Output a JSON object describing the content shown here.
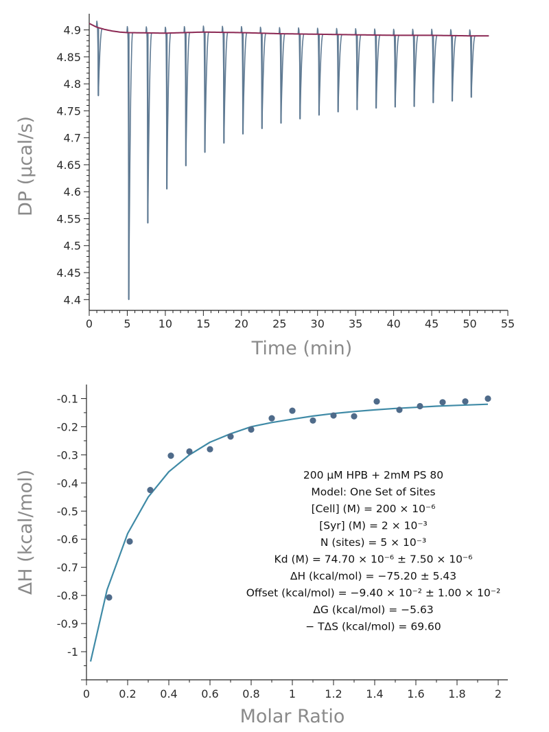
{
  "chart_data": [
    {
      "type": "line",
      "title": "",
      "xlabel": "Time (min)",
      "ylabel": "DP (µcal/s)",
      "xlim": [
        0,
        55
      ],
      "ylim": [
        4.38,
        4.93
      ],
      "xticks": [
        "0",
        "5",
        "10",
        "15",
        "20",
        "25",
        "30",
        "35",
        "40",
        "45",
        "50",
        "55"
      ],
      "yticks": [
        "4.4",
        "4.45",
        "4.5",
        "4.55",
        "4.6",
        "4.65",
        "4.7",
        "4.75",
        "4.8",
        "4.85",
        "4.9"
      ],
      "colors": {
        "trace": "#5f7a93",
        "baseline": "#8e2a55"
      },
      "series": [
        {
          "name": "Baseline",
          "x": [
            0,
            1,
            2,
            3,
            4,
            5,
            10,
            15,
            20,
            25,
            30,
            35,
            40,
            45,
            50,
            52.5
          ],
          "y": [
            4.912,
            4.905,
            4.901,
            4.898,
            4.896,
            4.895,
            4.894,
            4.896,
            4.895,
            4.893,
            4.892,
            4.891,
            4.89,
            4.89,
            4.889,
            4.889
          ]
        },
        {
          "name": "Injection peaks",
          "x": [
            1.2,
            5.2,
            7.7,
            10.2,
            12.7,
            15.2,
            17.7,
            20.2,
            22.7,
            25.2,
            27.7,
            30.2,
            32.7,
            35.2,
            37.7,
            40.2,
            42.7,
            45.2,
            47.7,
            50.2
          ],
          "y": [
            4.778,
            4.4,
            4.542,
            4.605,
            4.648,
            4.673,
            4.69,
            4.707,
            4.717,
            4.727,
            4.735,
            4.742,
            4.748,
            4.752,
            4.755,
            4.757,
            4.758,
            4.765,
            4.768,
            4.775
          ]
        }
      ]
    },
    {
      "type": "scatter",
      "title": "",
      "xlabel": "Molar Ratio",
      "ylabel": "ΔH (kcal/mol)",
      "xlim": [
        0,
        2
      ],
      "ylim": [
        -1.1,
        -0.05
      ],
      "xticks": [
        "0",
        "0.2",
        "0.4",
        "0.6",
        "0.8",
        "1",
        "1.2",
        "1.4",
        "1.6",
        "1.8",
        "2"
      ],
      "yticks": [
        "-1",
        "-0.9",
        "-0.8",
        "-0.7",
        "-0.6",
        "-0.5",
        "-0.4",
        "-0.3",
        "-0.2",
        "-0.1"
      ],
      "colors": {
        "points": "#4f6b8a",
        "fit": "#3f8aa6"
      },
      "series": [
        {
          "name": "Data",
          "x": [
            0.11,
            0.21,
            0.31,
            0.41,
            0.5,
            0.6,
            0.7,
            0.8,
            0.9,
            1.0,
            1.1,
            1.2,
            1.3,
            1.41,
            1.52,
            1.62,
            1.73,
            1.84,
            1.95
          ],
          "y": [
            -0.807,
            -0.608,
            -0.425,
            -0.303,
            -0.288,
            -0.28,
            -0.235,
            -0.21,
            -0.17,
            -0.143,
            -0.178,
            -0.16,
            -0.163,
            -0.11,
            -0.14,
            -0.127,
            -0.113,
            -0.11,
            -0.1
          ]
        },
        {
          "name": "Fit",
          "x": [
            0.02,
            0.1,
            0.2,
            0.3,
            0.4,
            0.5,
            0.6,
            0.7,
            0.8,
            0.9,
            1.0,
            1.1,
            1.2,
            1.3,
            1.4,
            1.5,
            1.6,
            1.7,
            1.8,
            1.95
          ],
          "y": [
            -1.035,
            -0.78,
            -0.58,
            -0.45,
            -0.36,
            -0.3,
            -0.255,
            -0.225,
            -0.2,
            -0.185,
            -0.173,
            -0.162,
            -0.153,
            -0.146,
            -0.14,
            -0.135,
            -0.131,
            -0.127,
            -0.124,
            -0.12
          ]
        }
      ],
      "annotations": [
        "200 µM HPB + 2mM PS 80",
        "Model: One Set of Sites",
        "[Cell] (M) = 200 × 10⁻⁶",
        "[Syr] (M) = 2 × 10⁻³",
        "N (sites) = 5 × 10⁻³",
        "Kd  (M) = 74.70 × 10⁻⁶ ± 7.50 × 10⁻⁶",
        "ΔH (kcal/mol) = −75.20 ± 5.43",
        "Offset (kcal/mol) = −9.40 × 10⁻² ± 1.00 × 10⁻²",
        "ΔG (kcal/mol) = −5.63",
        "− TΔS (kcal/mol) = 69.60"
      ]
    }
  ]
}
